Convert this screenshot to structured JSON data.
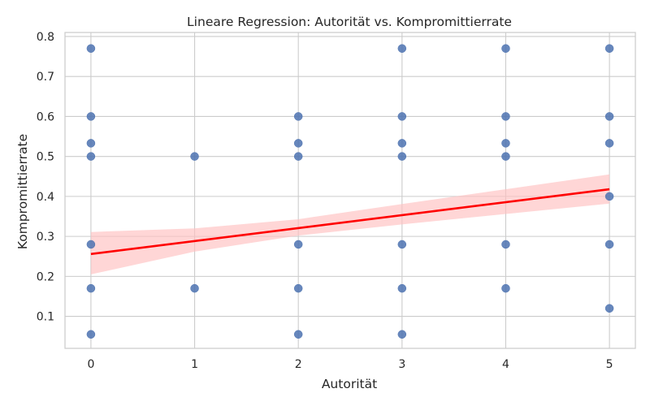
{
  "chart_data": {
    "type": "scatter",
    "title": "Lineare Regression: Autorität vs. Kompromittierrate",
    "xlabel": "Autorität",
    "ylabel": "Kompromittierrate",
    "xlim": [
      -0.25,
      5.25
    ],
    "ylim": [
      0.02,
      0.81
    ],
    "xticks": [
      0,
      1,
      2,
      3,
      4,
      5
    ],
    "xtick_labels": [
      "0",
      "1",
      "2",
      "3",
      "4",
      "5"
    ],
    "yticks": [
      0.1,
      0.2,
      0.3,
      0.4,
      0.5,
      0.6,
      0.7,
      0.8
    ],
    "ytick_labels": [
      "0.1",
      "0.2",
      "0.3",
      "0.4",
      "0.5",
      "0.6",
      "0.7",
      "0.8"
    ],
    "grid": true,
    "series": [
      {
        "kind": "points",
        "color": "#4c72b0",
        "points": [
          [
            0,
            0.77
          ],
          [
            0,
            0.6
          ],
          [
            0,
            0.533
          ],
          [
            0,
            0.5
          ],
          [
            0,
            0.28
          ],
          [
            0,
            0.17
          ],
          [
            0,
            0.055
          ],
          [
            1,
            0.5
          ],
          [
            1,
            0.17
          ],
          [
            2,
            0.6
          ],
          [
            2,
            0.533
          ],
          [
            2,
            0.5
          ],
          [
            2,
            0.28
          ],
          [
            2,
            0.17
          ],
          [
            2,
            0.055
          ],
          [
            3,
            0.77
          ],
          [
            3,
            0.6
          ],
          [
            3,
            0.533
          ],
          [
            3,
            0.5
          ],
          [
            3,
            0.28
          ],
          [
            3,
            0.17
          ],
          [
            3,
            0.055
          ],
          [
            4,
            0.77
          ],
          [
            4,
            0.6
          ],
          [
            4,
            0.533
          ],
          [
            4,
            0.5
          ],
          [
            4,
            0.28
          ],
          [
            4,
            0.17
          ],
          [
            5,
            0.77
          ],
          [
            5,
            0.6
          ],
          [
            5,
            0.533
          ],
          [
            5,
            0.4
          ],
          [
            5,
            0.28
          ],
          [
            5,
            0.12
          ]
        ]
      },
      {
        "kind": "regression",
        "color": "#ff0000",
        "x": [
          0,
          5
        ],
        "y": [
          0.256,
          0.418
        ]
      },
      {
        "kind": "confidence-band",
        "color": "#ffc0c0",
        "x": [
          0,
          1,
          2,
          3,
          4,
          5
        ],
        "lower": [
          0.205,
          0.262,
          0.302,
          0.33,
          0.356,
          0.382
        ],
        "upper": [
          0.311,
          0.32,
          0.343,
          0.381,
          0.418,
          0.455
        ]
      }
    ]
  }
}
